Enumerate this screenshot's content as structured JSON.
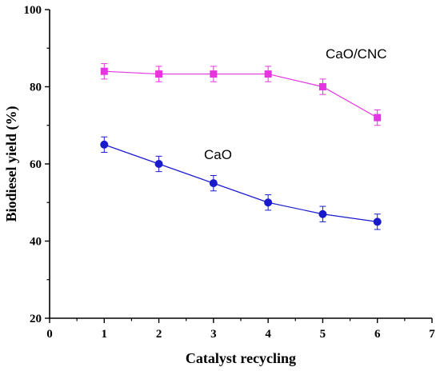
{
  "chart_data": {
    "type": "line",
    "xlabel": "Catalyst recycling",
    "ylabel": "Biodiesel yield (%)",
    "xlim": [
      0,
      7
    ],
    "ylim": [
      20,
      100
    ],
    "x_ticks": [
      0,
      1,
      2,
      3,
      4,
      5,
      6,
      7
    ],
    "y_ticks": [
      20,
      40,
      60,
      80,
      100
    ],
    "grid": false,
    "x": [
      1,
      2,
      3,
      4,
      5,
      6
    ],
    "series": [
      {
        "name": "CaO/CNC",
        "values": [
          84,
          83.3,
          83.3,
          83.3,
          80,
          72
        ],
        "errors": [
          2,
          2,
          2,
          2,
          2,
          2
        ],
        "color": "#e535e0",
        "marker": "square"
      },
      {
        "name": "CaO",
        "values": [
          65,
          60,
          55,
          50,
          47,
          45
        ],
        "errors": [
          2,
          2,
          2,
          2,
          2,
          2
        ],
        "color": "#1a1acd",
        "marker": "circle"
      }
    ]
  }
}
